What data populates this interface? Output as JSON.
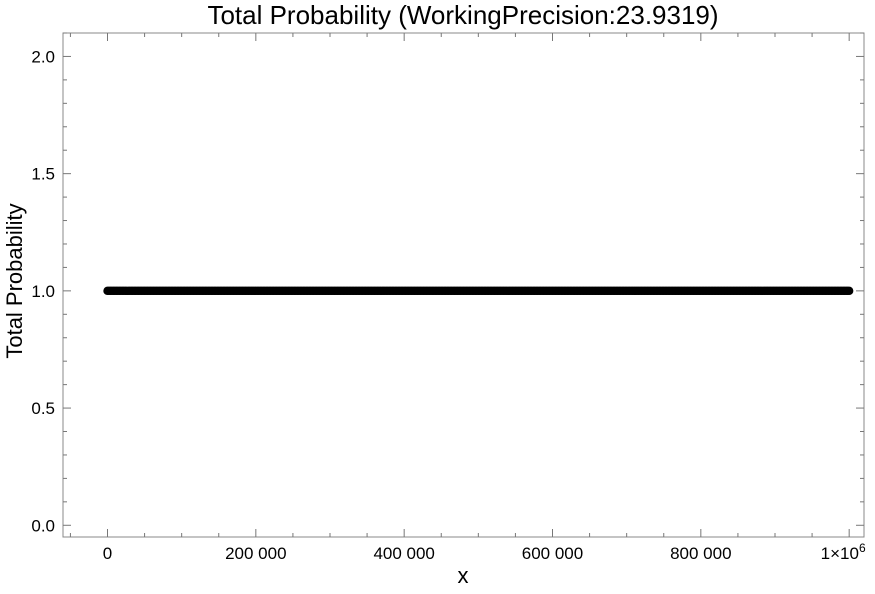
{
  "chart_data": {
    "type": "scatter",
    "title": "Total Probability (WorkingPrecision:23.9319)",
    "xlabel": "x",
    "ylabel": "Total Probability",
    "xlim": [
      -60000,
      1020000
    ],
    "ylim": [
      -0.05,
      2.1
    ],
    "x_ticks": [
      0,
      200000,
      400000,
      600000,
      800000,
      1000000
    ],
    "x_tick_labels": [
      "0",
      "200 000",
      "400 000",
      "600 000",
      "800 000",
      "1×10"
    ],
    "x_tick_label_superscript": "6",
    "y_ticks": [
      0.0,
      0.5,
      1.0,
      1.5,
      2.0
    ],
    "y_tick_labels": [
      "0.0",
      "0.5",
      "1.0",
      "1.5",
      "2.0"
    ],
    "grid": false,
    "frame": true,
    "series": [
      {
        "color": "#000000",
        "x_start": 0,
        "x_end": 1000000,
        "x_step": 2000,
        "y": 1.0
      }
    ]
  }
}
